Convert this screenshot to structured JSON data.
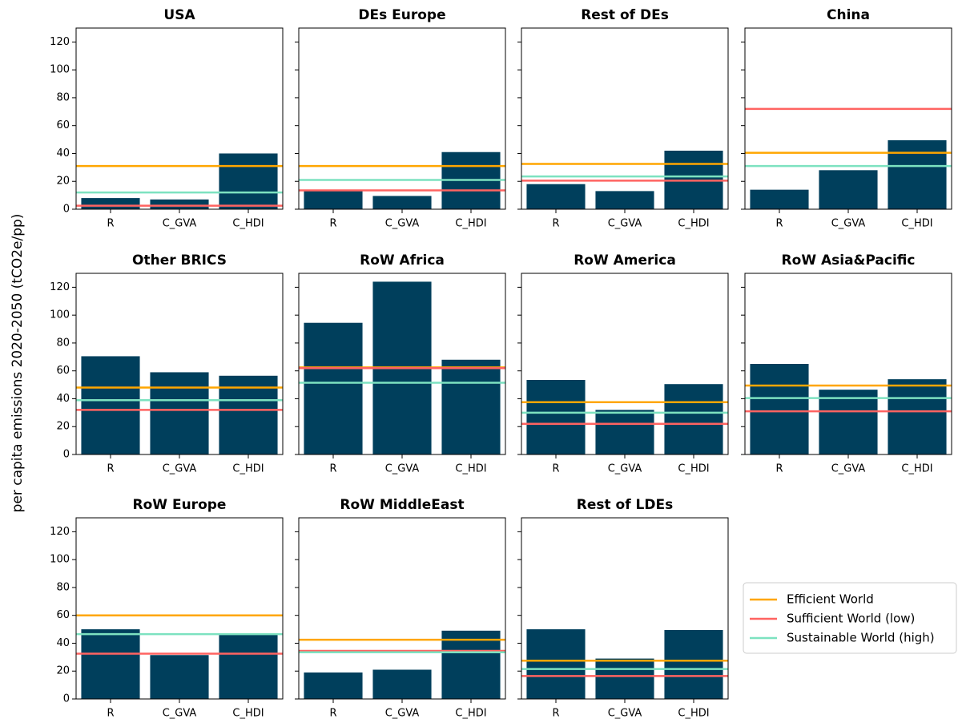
{
  "ylabel": "per capita emissions 2020-2050 (tCO2e/pp)",
  "legend": {
    "position": "right",
    "entries": [
      {
        "name": "Efficient World",
        "color": "#ffa600"
      },
      {
        "name": "Sufficient World (low)",
        "color": "#ff6361"
      },
      {
        "name": "Sustainable World (high)",
        "color": "#7de2c0"
      }
    ]
  },
  "chart_data": [
    {
      "type": "bar",
      "title": "USA",
      "categories": [
        "R",
        "C_GVA",
        "C_HDI"
      ],
      "values": [
        8,
        7,
        40
      ],
      "references": [
        31,
        2.5,
        12
      ],
      "color": "#003f5c",
      "ylim": [
        0,
        130
      ],
      "yticks": [
        0,
        20,
        40,
        60,
        80,
        100,
        120
      ]
    },
    {
      "type": "bar",
      "title": "DEs Europe",
      "categories": [
        "R",
        "C_GVA",
        "C_HDI"
      ],
      "values": [
        13,
        9.5,
        41
      ],
      "references": [
        31,
        13.5,
        21
      ],
      "color": "#003f5c",
      "ylim": [
        0,
        130
      ],
      "yticks": [
        0,
        20,
        40,
        60,
        80,
        100,
        120
      ]
    },
    {
      "type": "bar",
      "title": "Rest of DEs",
      "categories": [
        "R",
        "C_GVA",
        "C_HDI"
      ],
      "values": [
        18,
        13,
        42
      ],
      "references": [
        32.5,
        20.5,
        23.5
      ],
      "color": "#003f5c",
      "ylim": [
        0,
        130
      ],
      "yticks": [
        0,
        20,
        40,
        60,
        80,
        100,
        120
      ]
    },
    {
      "type": "bar",
      "title": "China",
      "categories": [
        "R",
        "C_GVA",
        "C_HDI"
      ],
      "values": [
        14,
        28,
        49.5
      ],
      "references": [
        40.5,
        72,
        31
      ],
      "color": "#003f5c",
      "ylim": [
        0,
        130
      ],
      "yticks": [
        0,
        20,
        40,
        60,
        80,
        100,
        120
      ]
    },
    {
      "type": "bar",
      "title": "Other BRICS",
      "categories": [
        "R",
        "C_GVA",
        "C_HDI"
      ],
      "values": [
        70.5,
        59,
        56.5
      ],
      "references": [
        48,
        32,
        39
      ],
      "color": "#003f5c",
      "ylim": [
        0,
        130
      ],
      "yticks": [
        0,
        20,
        40,
        60,
        80,
        100,
        120
      ]
    },
    {
      "type": "bar",
      "title": "RoW Africa",
      "categories": [
        "R",
        "C_GVA",
        "C_HDI"
      ],
      "values": [
        94.5,
        124,
        68
      ],
      "references": [
        62.5,
        62,
        51.5
      ],
      "color": "#003f5c",
      "ylim": [
        0,
        130
      ],
      "yticks": [
        0,
        20,
        40,
        60,
        80,
        100,
        120
      ]
    },
    {
      "type": "bar",
      "title": "RoW America",
      "categories": [
        "R",
        "C_GVA",
        "C_HDI"
      ],
      "values": [
        53.5,
        32,
        50.5
      ],
      "references": [
        37.5,
        22,
        30
      ],
      "color": "#003f5c",
      "ylim": [
        0,
        130
      ],
      "yticks": [
        0,
        20,
        40,
        60,
        80,
        100,
        120
      ]
    },
    {
      "type": "bar",
      "title": "RoW Asia&Pacific",
      "categories": [
        "R",
        "C_GVA",
        "C_HDI"
      ],
      "values": [
        65,
        46.5,
        54
      ],
      "references": [
        49.5,
        31,
        40.5
      ],
      "color": "#003f5c",
      "ylim": [
        0,
        130
      ],
      "yticks": [
        0,
        20,
        40,
        60,
        80,
        100,
        120
      ]
    },
    {
      "type": "bar",
      "title": "RoW Europe",
      "categories": [
        "R",
        "C_GVA",
        "C_HDI"
      ],
      "values": [
        50,
        31.5,
        46
      ],
      "references": [
        60,
        32.5,
        46.5
      ],
      "color": "#003f5c",
      "ylim": [
        0,
        130
      ],
      "yticks": [
        0,
        20,
        40,
        60,
        80,
        100,
        120
      ]
    },
    {
      "type": "bar",
      "title": "RoW MiddleEast",
      "categories": [
        "R",
        "C_GVA",
        "C_HDI"
      ],
      "values": [
        19,
        21,
        49
      ],
      "references": [
        42.5,
        34.5,
        33.5
      ],
      "color": "#003f5c",
      "ylim": [
        0,
        130
      ],
      "yticks": [
        0,
        20,
        40,
        60,
        80,
        100,
        120
      ]
    },
    {
      "type": "bar",
      "title": "Rest of LDEs",
      "categories": [
        "R",
        "C_GVA",
        "C_HDI"
      ],
      "values": [
        50,
        29,
        49.5
      ],
      "references": [
        27.5,
        16.5,
        21.5
      ],
      "color": "#003f5c",
      "ylim": [
        0,
        130
      ],
      "yticks": [
        0,
        20,
        40,
        60,
        80,
        100,
        120
      ]
    }
  ]
}
